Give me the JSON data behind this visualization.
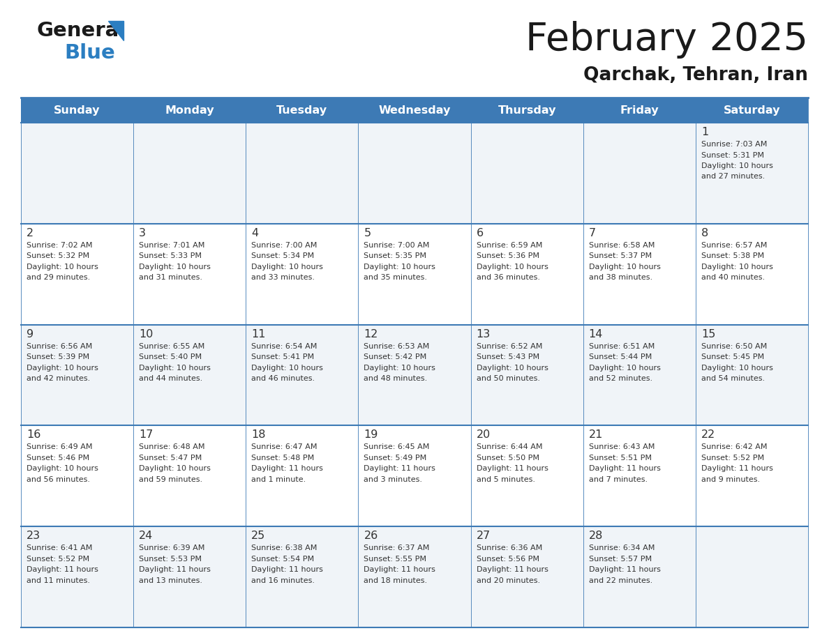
{
  "title": "February 2025",
  "subtitle": "Qarchak, Tehran, Iran",
  "days_of_week": [
    "Sunday",
    "Monday",
    "Tuesday",
    "Wednesday",
    "Thursday",
    "Friday",
    "Saturday"
  ],
  "header_bg": "#3d7ab5",
  "header_text": "#ffffff",
  "row_bg_odd": "#f0f4f8",
  "row_bg_even": "#ffffff",
  "text_color": "#333333",
  "border_color": "#3d7ab5",
  "calendar": [
    [
      null,
      null,
      null,
      null,
      null,
      null,
      {
        "day": "1",
        "sunrise": "7:03 AM",
        "sunset": "5:31 PM",
        "daylight_line1": "10 hours",
        "daylight_line2": "and 27 minutes."
      }
    ],
    [
      {
        "day": "2",
        "sunrise": "7:02 AM",
        "sunset": "5:32 PM",
        "daylight_line1": "10 hours",
        "daylight_line2": "and 29 minutes."
      },
      {
        "day": "3",
        "sunrise": "7:01 AM",
        "sunset": "5:33 PM",
        "daylight_line1": "10 hours",
        "daylight_line2": "and 31 minutes."
      },
      {
        "day": "4",
        "sunrise": "7:00 AM",
        "sunset": "5:34 PM",
        "daylight_line1": "10 hours",
        "daylight_line2": "and 33 minutes."
      },
      {
        "day": "5",
        "sunrise": "7:00 AM",
        "sunset": "5:35 PM",
        "daylight_line1": "10 hours",
        "daylight_line2": "and 35 minutes."
      },
      {
        "day": "6",
        "sunrise": "6:59 AM",
        "sunset": "5:36 PM",
        "daylight_line1": "10 hours",
        "daylight_line2": "and 36 minutes."
      },
      {
        "day": "7",
        "sunrise": "6:58 AM",
        "sunset": "5:37 PM",
        "daylight_line1": "10 hours",
        "daylight_line2": "and 38 minutes."
      },
      {
        "day": "8",
        "sunrise": "6:57 AM",
        "sunset": "5:38 PM",
        "daylight_line1": "10 hours",
        "daylight_line2": "and 40 minutes."
      }
    ],
    [
      {
        "day": "9",
        "sunrise": "6:56 AM",
        "sunset": "5:39 PM",
        "daylight_line1": "10 hours",
        "daylight_line2": "and 42 minutes."
      },
      {
        "day": "10",
        "sunrise": "6:55 AM",
        "sunset": "5:40 PM",
        "daylight_line1": "10 hours",
        "daylight_line2": "and 44 minutes."
      },
      {
        "day": "11",
        "sunrise": "6:54 AM",
        "sunset": "5:41 PM",
        "daylight_line1": "10 hours",
        "daylight_line2": "and 46 minutes."
      },
      {
        "day": "12",
        "sunrise": "6:53 AM",
        "sunset": "5:42 PM",
        "daylight_line1": "10 hours",
        "daylight_line2": "and 48 minutes."
      },
      {
        "day": "13",
        "sunrise": "6:52 AM",
        "sunset": "5:43 PM",
        "daylight_line1": "10 hours",
        "daylight_line2": "and 50 minutes."
      },
      {
        "day": "14",
        "sunrise": "6:51 AM",
        "sunset": "5:44 PM",
        "daylight_line1": "10 hours",
        "daylight_line2": "and 52 minutes."
      },
      {
        "day": "15",
        "sunrise": "6:50 AM",
        "sunset": "5:45 PM",
        "daylight_line1": "10 hours",
        "daylight_line2": "and 54 minutes."
      }
    ],
    [
      {
        "day": "16",
        "sunrise": "6:49 AM",
        "sunset": "5:46 PM",
        "daylight_line1": "10 hours",
        "daylight_line2": "and 56 minutes."
      },
      {
        "day": "17",
        "sunrise": "6:48 AM",
        "sunset": "5:47 PM",
        "daylight_line1": "10 hours",
        "daylight_line2": "and 59 minutes."
      },
      {
        "day": "18",
        "sunrise": "6:47 AM",
        "sunset": "5:48 PM",
        "daylight_line1": "11 hours",
        "daylight_line2": "and 1 minute."
      },
      {
        "day": "19",
        "sunrise": "6:45 AM",
        "sunset": "5:49 PM",
        "daylight_line1": "11 hours",
        "daylight_line2": "and 3 minutes."
      },
      {
        "day": "20",
        "sunrise": "6:44 AM",
        "sunset": "5:50 PM",
        "daylight_line1": "11 hours",
        "daylight_line2": "and 5 minutes."
      },
      {
        "day": "21",
        "sunrise": "6:43 AM",
        "sunset": "5:51 PM",
        "daylight_line1": "11 hours",
        "daylight_line2": "and 7 minutes."
      },
      {
        "day": "22",
        "sunrise": "6:42 AM",
        "sunset": "5:52 PM",
        "daylight_line1": "11 hours",
        "daylight_line2": "and 9 minutes."
      }
    ],
    [
      {
        "day": "23",
        "sunrise": "6:41 AM",
        "sunset": "5:52 PM",
        "daylight_line1": "11 hours",
        "daylight_line2": "and 11 minutes."
      },
      {
        "day": "24",
        "sunrise": "6:39 AM",
        "sunset": "5:53 PM",
        "daylight_line1": "11 hours",
        "daylight_line2": "and 13 minutes."
      },
      {
        "day": "25",
        "sunrise": "6:38 AM",
        "sunset": "5:54 PM",
        "daylight_line1": "11 hours",
        "daylight_line2": "and 16 minutes."
      },
      {
        "day": "26",
        "sunrise": "6:37 AM",
        "sunset": "5:55 PM",
        "daylight_line1": "11 hours",
        "daylight_line2": "and 18 minutes."
      },
      {
        "day": "27",
        "sunrise": "6:36 AM",
        "sunset": "5:56 PM",
        "daylight_line1": "11 hours",
        "daylight_line2": "and 20 minutes."
      },
      {
        "day": "28",
        "sunrise": "6:34 AM",
        "sunset": "5:57 PM",
        "daylight_line1": "11 hours",
        "daylight_line2": "and 22 minutes."
      },
      null
    ]
  ],
  "logo_general_color": "#1a1a1a",
  "logo_blue_color": "#2b7ec1",
  "logo_triangle_color": "#2b7ec1",
  "fig_width": 11.88,
  "fig_height": 9.18,
  "dpi": 100
}
